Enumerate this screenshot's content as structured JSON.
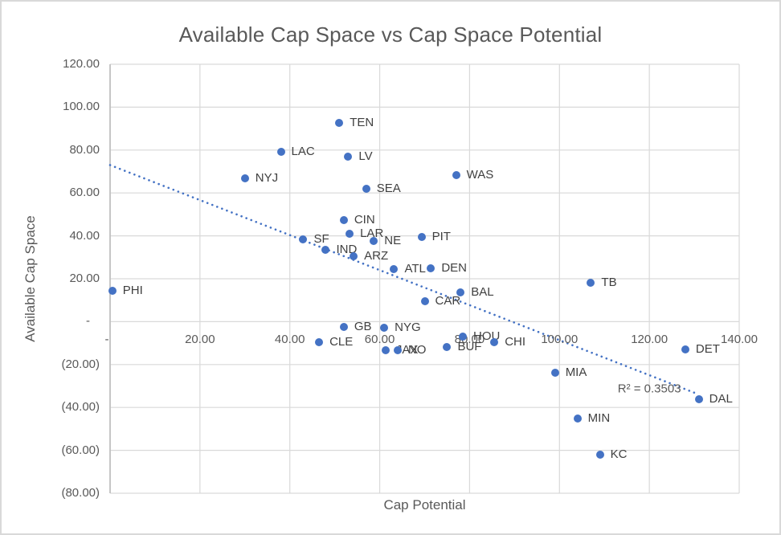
{
  "chart_data": {
    "type": "scatter",
    "title": "Available Cap Space vs Cap Space Potential",
    "xlabel": "Cap Potential",
    "ylabel": "Available Cap Space",
    "xlim": [
      0,
      140
    ],
    "ylim": [
      -80,
      120
    ],
    "grid": true,
    "legend": false,
    "x_ticks": [
      {
        "value": 0,
        "label": "-"
      },
      {
        "value": 20,
        "label": "20.00"
      },
      {
        "value": 40,
        "label": "40.00"
      },
      {
        "value": 60,
        "label": "60.00"
      },
      {
        "value": 80,
        "label": "80.00"
      },
      {
        "value": 100,
        "label": "100.00"
      },
      {
        "value": 120,
        "label": "120.00"
      },
      {
        "value": 140,
        "label": "140.00"
      }
    ],
    "y_ticks": [
      {
        "value": 120,
        "label": "120.00"
      },
      {
        "value": 100,
        "label": "100.00"
      },
      {
        "value": 80,
        "label": "80.00"
      },
      {
        "value": 60,
        "label": "60.00"
      },
      {
        "value": 40,
        "label": "40.00"
      },
      {
        "value": 20,
        "label": "20.00"
      },
      {
        "value": 0,
        "label": "-"
      },
      {
        "value": -20,
        "label": "(20.00)"
      },
      {
        "value": -40,
        "label": "(40.00)"
      },
      {
        "value": -60,
        "label": "(60.00)"
      },
      {
        "value": -80,
        "label": "(80.00)"
      }
    ],
    "points": [
      {
        "label": "PHI",
        "x": 0.5,
        "y": 14.5
      },
      {
        "label": "NYJ",
        "x": 30,
        "y": 67
      },
      {
        "label": "LAC",
        "x": 38,
        "y": 79
      },
      {
        "label": "SF",
        "x": 43,
        "y": 38.5
      },
      {
        "label": "CLE",
        "x": 46.5,
        "y": -9.5
      },
      {
        "label": "IND",
        "x": 48,
        "y": 33.5
      },
      {
        "label": "TEN",
        "x": 51,
        "y": 92.5
      },
      {
        "label": "CIN",
        "x": 52,
        "y": 47.5
      },
      {
        "label": "GB",
        "x": 52,
        "y": -2.5
      },
      {
        "label": "LV",
        "x": 53,
        "y": 77
      },
      {
        "label": "LAR",
        "x": 53.3,
        "y": 41
      },
      {
        "label": "ARZ",
        "x": 54.2,
        "y": 30.5
      },
      {
        "label": "SEA",
        "x": 57,
        "y": 62
      },
      {
        "label": "NE",
        "x": 58.7,
        "y": 37.5
      },
      {
        "label": "NYG",
        "x": 61,
        "y": -3
      },
      {
        "label": "JAX",
        "x": 61.3,
        "y": -13.5
      },
      {
        "label": "ATL",
        "x": 63.2,
        "y": 24.5
      },
      {
        "label": "NO",
        "x": 64,
        "y": -13.5
      },
      {
        "label": "PIT",
        "x": 69.3,
        "y": 39.5
      },
      {
        "label": "CAR",
        "x": 70,
        "y": 9.5
      },
      {
        "label": "DEN",
        "x": 71.4,
        "y": 25
      },
      {
        "label": "BUF",
        "x": 75,
        "y": -12
      },
      {
        "label": "WAS",
        "x": 77,
        "y": 68.5
      },
      {
        "label": "BAL",
        "x": 78,
        "y": 13.5
      },
      {
        "label": "HOU",
        "x": 78.5,
        "y": -7
      },
      {
        "label": "CHI",
        "x": 85.5,
        "y": -9.5
      },
      {
        "label": "MIA",
        "x": 99,
        "y": -24
      },
      {
        "label": "MIN",
        "x": 104,
        "y": -45
      },
      {
        "label": "TB",
        "x": 107,
        "y": 18
      },
      {
        "label": "KC",
        "x": 109,
        "y": -62
      },
      {
        "label": "DET",
        "x": 128,
        "y": -13
      },
      {
        "label": "DAL",
        "x": 131,
        "y": -36
      }
    ],
    "trendline": {
      "style": "dotted",
      "x1": 0,
      "y1": 73,
      "x2": 130.7,
      "y2": -33.7,
      "r2_label": "R² = 0.3503",
      "r2_x": 120,
      "r2_y": -31.3
    },
    "colors": {
      "marker": "#4472C4",
      "trendline": "#4472C4",
      "gridline": "#D9D9D9",
      "axis_line": "#C0C0C0",
      "title_text": "#595959",
      "tick_text": "#595959",
      "point_label_text": "#404040",
      "chart_border": "#D9D9D9"
    }
  }
}
